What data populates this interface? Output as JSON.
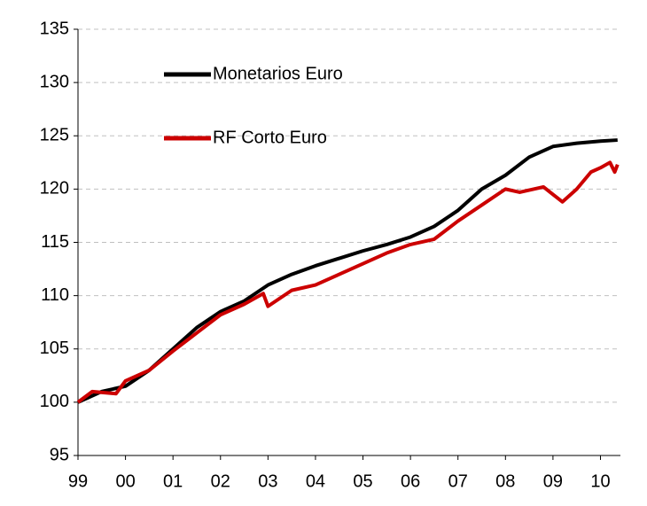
{
  "chart_data": {
    "type": "line",
    "series": [
      {
        "name": "Monetarios Euro",
        "color": "#000000",
        "x": [
          1999,
          1999.5,
          2000,
          2000.5,
          2001,
          2001.5,
          2002,
          2002.5,
          2003,
          2003.5,
          2004,
          2004.5,
          2005,
          2005.5,
          2006,
          2006.5,
          2007,
          2007.5,
          2008,
          2008.5,
          2009,
          2009.5,
          2010,
          2010.36
        ],
        "values": [
          100,
          101,
          101.5,
          103,
          105,
          107,
          108.5,
          109.5,
          111,
          112,
          112.8,
          113.5,
          114.2,
          114.8,
          115.5,
          116.5,
          118,
          120,
          121.3,
          123,
          124,
          124.3,
          124.5,
          124.6
        ]
      },
      {
        "name": "RF Corto Euro",
        "color": "#cc0000",
        "x": [
          1999,
          1999.3,
          1999.8,
          2000,
          2000.5,
          2001,
          2001.5,
          2002,
          2002.5,
          2002.9,
          2003,
          2003.5,
          2004,
          2004.5,
          2005,
          2005.5,
          2006,
          2006.5,
          2007,
          2007.5,
          2008,
          2008.3,
          2008.8,
          2009,
          2009.2,
          2009.5,
          2009.8,
          2010,
          2010.2,
          2010.3,
          2010.36
        ],
        "values": [
          100,
          101,
          100.8,
          102,
          103,
          104.8,
          106.5,
          108.2,
          109.2,
          110.2,
          109,
          110.5,
          111,
          112,
          113,
          114,
          114.8,
          115.3,
          117,
          118.5,
          120,
          119.7,
          120.2,
          119.5,
          118.8,
          120,
          121.6,
          122,
          122.5,
          121.6,
          122.3
        ]
      }
    ],
    "xlim": [
      1999,
      2010.42
    ],
    "xticks": [
      {
        "value": 1999,
        "label": "99"
      },
      {
        "value": 2000,
        "label": "00"
      },
      {
        "value": 2001,
        "label": "01"
      },
      {
        "value": 2002,
        "label": "02"
      },
      {
        "value": 2003,
        "label": "03"
      },
      {
        "value": 2004,
        "label": "04"
      },
      {
        "value": 2005,
        "label": "05"
      },
      {
        "value": 2006,
        "label": "06"
      },
      {
        "value": 2007,
        "label": "07"
      },
      {
        "value": 2008,
        "label": "08"
      },
      {
        "value": 2009,
        "label": "09"
      },
      {
        "value": 2010,
        "label": "10"
      }
    ],
    "ylim": [
      95,
      135
    ],
    "yticks": [
      95,
      100,
      105,
      110,
      115,
      120,
      125,
      130,
      135
    ],
    "grid": true
  }
}
